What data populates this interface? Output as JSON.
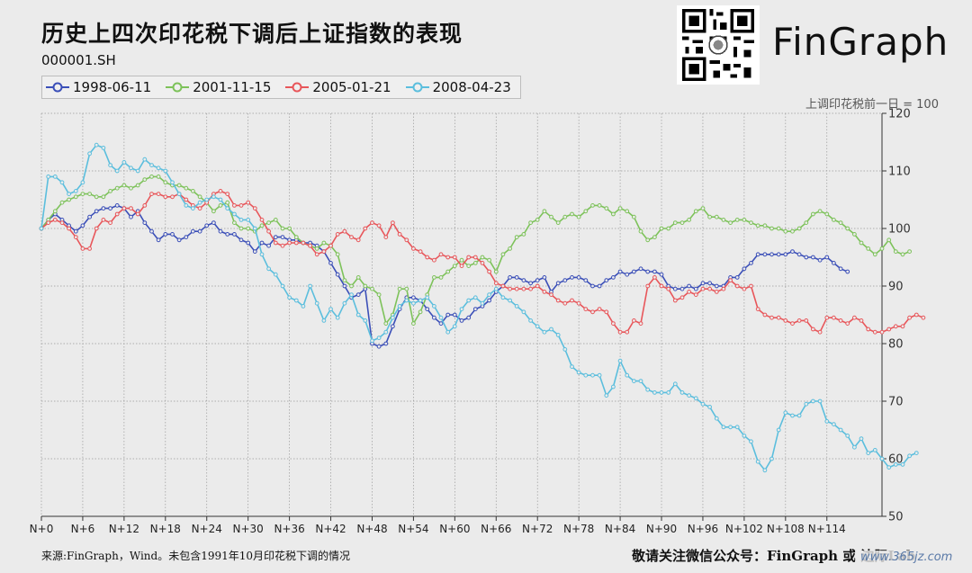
{
  "header": {
    "title": "历史上四次印花税下调后上证指数的表现",
    "subtitle": "000001.SH",
    "brand": "FinGraph",
    "axis_note": "上调印花税前一日 = 100"
  },
  "footer": {
    "source": "来源:FinGraph，Wind。未包含1991年10月印花税下调的情况",
    "follow": "敬请关注微信公众号：FinGraph 或 边际Lab",
    "watermark": "www.365jz.com"
  },
  "colors": {
    "s1998": "#3b4fb8",
    "s2001": "#7dc25a",
    "s2005": "#e8565a",
    "s2008": "#5bbedd"
  },
  "chart_data": {
    "type": "line",
    "title": "历史上四次印花税下调后上证指数的表现",
    "ylabel": "上调印花税前一日 = 100",
    "ylim": [
      50,
      120
    ],
    "yticks": [
      50,
      60,
      70,
      80,
      90,
      100,
      110,
      120
    ],
    "xlim": [
      0,
      122
    ],
    "xticks": [
      0,
      6,
      12,
      18,
      24,
      30,
      36,
      42,
      48,
      54,
      60,
      66,
      72,
      78,
      84,
      90,
      96,
      102,
      108,
      114
    ],
    "xtick_labels": [
      "N+0",
      "N+6",
      "N+12",
      "N+18",
      "N+24",
      "N+30",
      "N+36",
      "N+42",
      "N+48",
      "N+54",
      "N+60",
      "N+66",
      "N+72",
      "N+78",
      "N+84",
      "N+90",
      "N+96",
      "N+102",
      "N+108",
      "N+114"
    ],
    "grid": true,
    "legend": "top-left",
    "series": [
      {
        "name": "1998-06-11",
        "color": "#3b4fb8",
        "values": [
          100,
          101.5,
          102.5,
          101.5,
          100.5,
          99.5,
          100.5,
          102,
          103,
          103.5,
          103.5,
          104,
          103.5,
          102,
          103,
          101,
          99.5,
          98,
          99,
          99,
          98,
          98.5,
          99.5,
          99.5,
          100.5,
          101,
          99.5,
          99,
          99,
          98,
          97.5,
          96,
          97.5,
          97,
          98.5,
          98.5,
          98,
          98,
          97.5,
          97.5,
          97,
          96,
          94,
          92,
          90,
          88,
          88.5,
          89.5,
          80,
          79.5,
          80,
          83,
          86,
          88,
          88,
          87.5,
          86,
          84.5,
          83.5,
          85,
          85,
          84,
          84.5,
          86,
          86.5,
          87.5,
          89,
          90,
          91.5,
          91.5,
          91,
          90.5,
          91,
          91.5,
          89,
          90.5,
          91,
          91.5,
          91.5,
          91,
          90,
          90,
          91,
          91.5,
          92.5,
          92,
          92.5,
          93,
          92.5,
          92.5,
          92,
          90,
          89.5,
          89.5,
          90,
          89.5,
          90.5,
          90.5,
          90,
          90,
          91.5,
          91.5,
          93,
          94,
          95.5,
          95.5,
          95.5,
          95.5,
          95.5,
          96,
          95.5,
          95,
          95,
          94.5,
          95,
          94,
          93,
          92.5
        ]
      },
      {
        "name": "2001-11-15",
        "color": "#7dc25a",
        "values": [
          100,
          101.5,
          103,
          104.5,
          105,
          105.5,
          106,
          106,
          105.5,
          105.5,
          106.5,
          107,
          107.5,
          107,
          107.5,
          108.5,
          109,
          109,
          108,
          107.5,
          107.5,
          107,
          106.5,
          105.5,
          104.5,
          103,
          104,
          104.5,
          101,
          100,
          100,
          99.5,
          100.5,
          101,
          101.5,
          100,
          100,
          98.5,
          97.5,
          97,
          96.5,
          97.5,
          97,
          95.5,
          91,
          90,
          91.5,
          90,
          89.5,
          88.5,
          83.5,
          85,
          89.5,
          89.5,
          83.5,
          85.5,
          88.5,
          91.5,
          91.5,
          92.5,
          93.5,
          94.5,
          93.5,
          94,
          95,
          94.5,
          92.5,
          95.5,
          96.5,
          98.5,
          99,
          101,
          101.5,
          103,
          102,
          101,
          102,
          102.5,
          102,
          103,
          104,
          104,
          103.5,
          102.5,
          103.5,
          103,
          102,
          99.5,
          98,
          98.5,
          100,
          100,
          101,
          101,
          101.5,
          103,
          103.5,
          102,
          102,
          101.5,
          101,
          101.5,
          101.5,
          101,
          100.5,
          100.5,
          100,
          100,
          99.5,
          99.5,
          100,
          101,
          102.5,
          103,
          102.5,
          101.5,
          101,
          100,
          99,
          97.5,
          96.5,
          95.5,
          96.5,
          98,
          96,
          95.5,
          96
        ]
      },
      {
        "name": "2005-01-21",
        "color": "#e8565a",
        "values": [
          100,
          101,
          101.5,
          101,
          100,
          98.5,
          96.5,
          96.5,
          100,
          101.5,
          101,
          102.5,
          103.5,
          103.5,
          102.5,
          104,
          106,
          106,
          105.5,
          105.5,
          106,
          105,
          104,
          103.5,
          104.5,
          106,
          106.5,
          106,
          104,
          104,
          104.5,
          103.5,
          101.5,
          99.5,
          97.5,
          97,
          97.5,
          97.5,
          97.5,
          97,
          95.5,
          96,
          97,
          99,
          99.5,
          98.5,
          98,
          100,
          101,
          100.5,
          98.5,
          101,
          99,
          98,
          96.5,
          96,
          95,
          94.5,
          95.5,
          95,
          95,
          93.5,
          95,
          95,
          94,
          92.5,
          90.5,
          90,
          89.5,
          89.5,
          89.5,
          89.5,
          90,
          89,
          88.5,
          87.5,
          87,
          87.5,
          87,
          86,
          85.5,
          86,
          85.5,
          83.5,
          82,
          82,
          84,
          83.5,
          90,
          91.5,
          90,
          89.5,
          87.5,
          88,
          89,
          88.5,
          89.5,
          89.5,
          89,
          89.5,
          91,
          90,
          89.5,
          90,
          86,
          85,
          84.5,
          84.5,
          84,
          83.5,
          84,
          84,
          82.5,
          82,
          84.5,
          84.5,
          84,
          83.5,
          84.5,
          84,
          82.5,
          82,
          82,
          82.5,
          83,
          83,
          84.5,
          85,
          84.5
        ]
      },
      {
        "name": "2008-04-23",
        "color": "#5bbedd",
        "values": [
          100,
          109,
          109,
          108,
          106,
          106.5,
          108,
          113,
          114.5,
          114,
          111,
          110,
          111.5,
          110.5,
          110,
          112,
          111,
          110.5,
          110,
          108,
          106,
          104,
          103.5,
          104.5,
          105,
          105.5,
          105,
          103.5,
          102.5,
          101.5,
          101.5,
          100,
          95.5,
          93,
          92,
          90,
          88,
          87.5,
          86.5,
          90,
          87,
          84,
          86,
          84.5,
          87,
          88.5,
          85,
          84,
          80.5,
          81,
          82,
          84.5,
          86.5,
          87.5,
          87,
          87.5,
          88,
          86.5,
          84.5,
          82,
          83,
          86,
          87.5,
          88,
          87,
          88.5,
          89.5,
          88,
          87.5,
          86.5,
          85.5,
          84,
          83,
          82,
          82.5,
          81.5,
          79,
          76,
          75,
          74.5,
          74.5,
          74.5,
          71,
          72.5,
          77,
          74.5,
          73.5,
          73.5,
          72,
          71.5,
          71.5,
          71.5,
          73,
          71.5,
          71,
          70.5,
          69.5,
          69,
          67,
          65.5,
          65.5,
          65.5,
          64,
          63,
          59.5,
          58,
          60,
          65,
          68,
          67.5,
          67.5,
          69.5,
          70,
          70,
          66.5,
          66,
          65,
          64,
          62,
          63.5,
          61,
          61.5,
          60,
          58.5,
          59,
          59,
          60.5,
          61
        ]
      }
    ]
  }
}
